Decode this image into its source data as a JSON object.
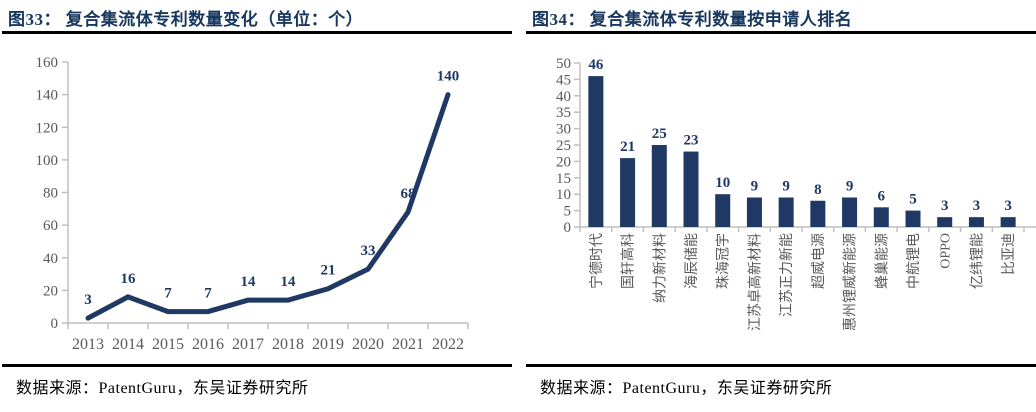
{
  "colors": {
    "navy": "#1f3864",
    "title_navy": "#17375e",
    "axis_line": "#bfbfbf",
    "tick_label": "#595959"
  },
  "figures": [
    {
      "title": "图33： 复合集流体专利数量变化（单位：个）",
      "source": "数据来源：PatentGuru，东吴证券研究所"
    },
    {
      "title": "图34： 复合集流体专利数量按申请人排名",
      "source": "数据来源：PatentGuru，东吴证券研究所"
    }
  ],
  "chart_data": [
    {
      "type": "line",
      "title": "复合集流体专利数量变化（单位：个）",
      "categories": [
        "2013",
        "2014",
        "2015",
        "2016",
        "2017",
        "2018",
        "2019",
        "2020",
        "2021",
        "2022"
      ],
      "values": [
        3,
        16,
        7,
        7,
        14,
        14,
        21,
        33,
        68,
        140
      ],
      "xlabel": "",
      "ylabel": "",
      "ylim": [
        0,
        160
      ],
      "ytick_step": 20,
      "grid": false,
      "legend": "none",
      "data_labels": true
    },
    {
      "type": "bar",
      "title": "复合集流体专利数量按申请人排名",
      "categories": [
        "宁德时代",
        "国轩高科",
        "纳力新材料",
        "海辰储能",
        "珠海冠宇",
        "江苏卓高新材料",
        "江苏正力新能",
        "超威电源",
        "惠州锂威新能源",
        "蜂巢能源",
        "中航锂电",
        "OPPO",
        "亿纬锂能",
        "比亚迪"
      ],
      "values": [
        46,
        21,
        25,
        23,
        10,
        9,
        9,
        8,
        9,
        6,
        5,
        3,
        3,
        3
      ],
      "xlabel": "",
      "ylabel": "",
      "ylim": [
        0,
        50
      ],
      "ytick_step": 5,
      "grid": false,
      "legend": "none",
      "data_labels": true
    }
  ]
}
